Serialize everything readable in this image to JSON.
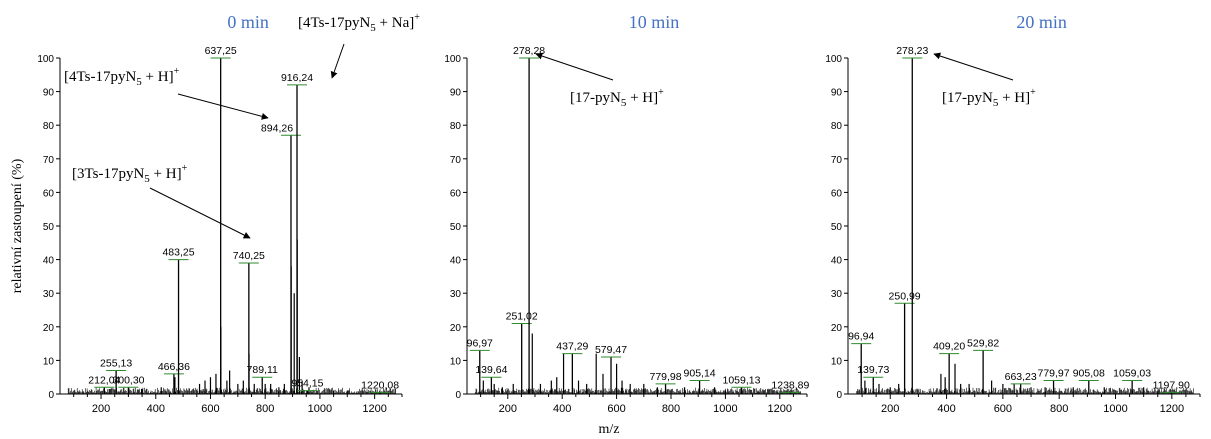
{
  "ylabel": "relativní zastoupení (%)",
  "xlabel": "m/z",
  "colors": {
    "title": "#4472c4",
    "axis": "#000000",
    "peak": "#000000",
    "marker": "#2e8b2e"
  },
  "chart_data": [
    {
      "type": "bar",
      "title": "0 min",
      "xlim": [
        50,
        1300
      ],
      "ylim": [
        0,
        100
      ],
      "x_ticks": [
        200,
        400,
        600,
        800,
        1000,
        1200
      ],
      "y_ticks": [
        0,
        10,
        20,
        30,
        40,
        50,
        60,
        70,
        80,
        90,
        100
      ],
      "peaks": [
        {
          "x": 212.04,
          "y": 2,
          "label": "212,04"
        },
        {
          "x": 255.13,
          "y": 7,
          "label": "255,13"
        },
        {
          "x": 300.3,
          "y": 2,
          "label": "300,30"
        },
        {
          "x": 466.36,
          "y": 6,
          "label": "466,36"
        },
        {
          "x": 483.25,
          "y": 40,
          "label": "483,25"
        },
        {
          "x": 637.25,
          "y": 100,
          "label": "637,25"
        },
        {
          "x": 740.25,
          "y": 39,
          "label": "740,25"
        },
        {
          "x": 789.11,
          "y": 5,
          "label": "789,11"
        },
        {
          "x": 894.26,
          "y": 77,
          "label": "894,26"
        },
        {
          "x": 916.24,
          "y": 92,
          "label": "916,24"
        },
        {
          "x": 954.15,
          "y": 1,
          "label": "954,15"
        },
        {
          "x": 1220.08,
          "y": 0.5,
          "label": "1220,08"
        }
      ],
      "minor_peaks": [
        {
          "x": 470,
          "y": 5
        },
        {
          "x": 560,
          "y": 3
        },
        {
          "x": 580,
          "y": 4
        },
        {
          "x": 600,
          "y": 5
        },
        {
          "x": 620,
          "y": 6
        },
        {
          "x": 638,
          "y": 20
        },
        {
          "x": 660,
          "y": 4
        },
        {
          "x": 670,
          "y": 7
        },
        {
          "x": 700,
          "y": 3
        },
        {
          "x": 720,
          "y": 4
        },
        {
          "x": 741,
          "y": 12
        },
        {
          "x": 760,
          "y": 3
        },
        {
          "x": 800,
          "y": 3
        },
        {
          "x": 820,
          "y": 3
        },
        {
          "x": 850,
          "y": 2
        },
        {
          "x": 870,
          "y": 3
        },
        {
          "x": 895,
          "y": 38
        },
        {
          "x": 906,
          "y": 30
        },
        {
          "x": 917,
          "y": 46
        },
        {
          "x": 925,
          "y": 11
        },
        {
          "x": 935,
          "y": 4
        },
        {
          "x": 960,
          "y": 2
        },
        {
          "x": 230,
          "y": 1.5
        },
        {
          "x": 350,
          "y": 1.5
        },
        {
          "x": 420,
          "y": 2
        },
        {
          "x": 1050,
          "y": 1
        },
        {
          "x": 1100,
          "y": 1
        }
      ],
      "annotations": [
        {
          "text": "[4Ts-17pyN",
          "sub": "5",
          "rest": " + Na]",
          "sup": "+",
          "pointsTo": 916.24
        },
        {
          "text": "[4Ts-17pyN",
          "sub": "5",
          "rest": " + H]",
          "sup": "+",
          "pointsTo": 894.26
        },
        {
          "text": "[3Ts-17pyN",
          "sub": "5",
          "rest": " + H]",
          "sup": "+",
          "pointsTo": 740.25
        }
      ]
    },
    {
      "type": "bar",
      "title": "10 min",
      "xlim": [
        50,
        1300
      ],
      "ylim": [
        0,
        100
      ],
      "x_ticks": [
        200,
        400,
        600,
        800,
        1000,
        1200
      ],
      "y_ticks": [
        0,
        10,
        20,
        30,
        40,
        50,
        60,
        70,
        80,
        90,
        100
      ],
      "peaks": [
        {
          "x": 96.97,
          "y": 13,
          "label": "96,97"
        },
        {
          "x": 139.64,
          "y": 5,
          "label": "139,64"
        },
        {
          "x": 251.02,
          "y": 21,
          "label": "251,02"
        },
        {
          "x": 278.28,
          "y": 100,
          "label": "278,28"
        },
        {
          "x": 437.29,
          "y": 12,
          "label": "437,29"
        },
        {
          "x": 579.47,
          "y": 11,
          "label": "579,47"
        },
        {
          "x": 779.98,
          "y": 3,
          "label": "779,98"
        },
        {
          "x": 905.14,
          "y": 4,
          "label": "905,14"
        },
        {
          "x": 1059.13,
          "y": 2,
          "label": "1059,13"
        },
        {
          "x": 1238.89,
          "y": 0.5,
          "label": "1238,89"
        }
      ],
      "minor_peaks": [
        {
          "x": 110,
          "y": 4
        },
        {
          "x": 150,
          "y": 3
        },
        {
          "x": 180,
          "y": 2
        },
        {
          "x": 220,
          "y": 3
        },
        {
          "x": 290,
          "y": 18
        },
        {
          "x": 320,
          "y": 3
        },
        {
          "x": 360,
          "y": 4
        },
        {
          "x": 380,
          "y": 5
        },
        {
          "x": 405,
          "y": 12
        },
        {
          "x": 460,
          "y": 4
        },
        {
          "x": 490,
          "y": 3
        },
        {
          "x": 525,
          "y": 12
        },
        {
          "x": 550,
          "y": 6
        },
        {
          "x": 600,
          "y": 9
        },
        {
          "x": 620,
          "y": 4
        },
        {
          "x": 650,
          "y": 3
        },
        {
          "x": 700,
          "y": 3
        },
        {
          "x": 750,
          "y": 2
        },
        {
          "x": 850,
          "y": 2
        },
        {
          "x": 960,
          "y": 2
        },
        {
          "x": 1000,
          "y": 1
        },
        {
          "x": 1120,
          "y": 1
        }
      ],
      "annotations": [
        {
          "text": "[17-pyN",
          "sub": "5",
          "rest": " + H]",
          "sup": "+",
          "pointsTo": 278.28
        }
      ]
    },
    {
      "type": "bar",
      "title": "20 min",
      "xlim": [
        50,
        1300
      ],
      "ylim": [
        0,
        100
      ],
      "x_ticks": [
        200,
        400,
        600,
        800,
        1000,
        1200
      ],
      "y_ticks": [
        0,
        10,
        20,
        30,
        40,
        50,
        60,
        70,
        80,
        90,
        100
      ],
      "peaks": [
        {
          "x": 96.94,
          "y": 15,
          "label": "96,94"
        },
        {
          "x": 139.73,
          "y": 5,
          "label": "139,73"
        },
        {
          "x": 250.99,
          "y": 27,
          "label": "250,99"
        },
        {
          "x": 278.23,
          "y": 100,
          "label": "278,23"
        },
        {
          "x": 409.2,
          "y": 12,
          "label": "409,20"
        },
        {
          "x": 529.82,
          "y": 13,
          "label": "529,82"
        },
        {
          "x": 663.23,
          "y": 3,
          "label": "663,23"
        },
        {
          "x": 779.97,
          "y": 4,
          "label": "779,97"
        },
        {
          "x": 905.08,
          "y": 4,
          "label": "905,08"
        },
        {
          "x": 1059.03,
          "y": 4,
          "label": "1059,03"
        },
        {
          "x": 1197.9,
          "y": 0.5,
          "label": "1197,90"
        }
      ],
      "minor_peaks": [
        {
          "x": 110,
          "y": 4
        },
        {
          "x": 160,
          "y": 3
        },
        {
          "x": 200,
          "y": 2
        },
        {
          "x": 230,
          "y": 3
        },
        {
          "x": 380,
          "y": 6
        },
        {
          "x": 395,
          "y": 5
        },
        {
          "x": 430,
          "y": 9
        },
        {
          "x": 450,
          "y": 3
        },
        {
          "x": 480,
          "y": 3
        },
        {
          "x": 560,
          "y": 4
        },
        {
          "x": 600,
          "y": 3
        },
        {
          "x": 640,
          "y": 3
        },
        {
          "x": 700,
          "y": 2
        },
        {
          "x": 750,
          "y": 2
        },
        {
          "x": 850,
          "y": 2
        },
        {
          "x": 960,
          "y": 2
        },
        {
          "x": 1100,
          "y": 2
        },
        {
          "x": 1150,
          "y": 1
        }
      ],
      "annotations": [
        {
          "text": "[17-pyN",
          "sub": "5",
          "rest": " + H]",
          "sup": "+",
          "pointsTo": 278.23
        }
      ]
    }
  ]
}
